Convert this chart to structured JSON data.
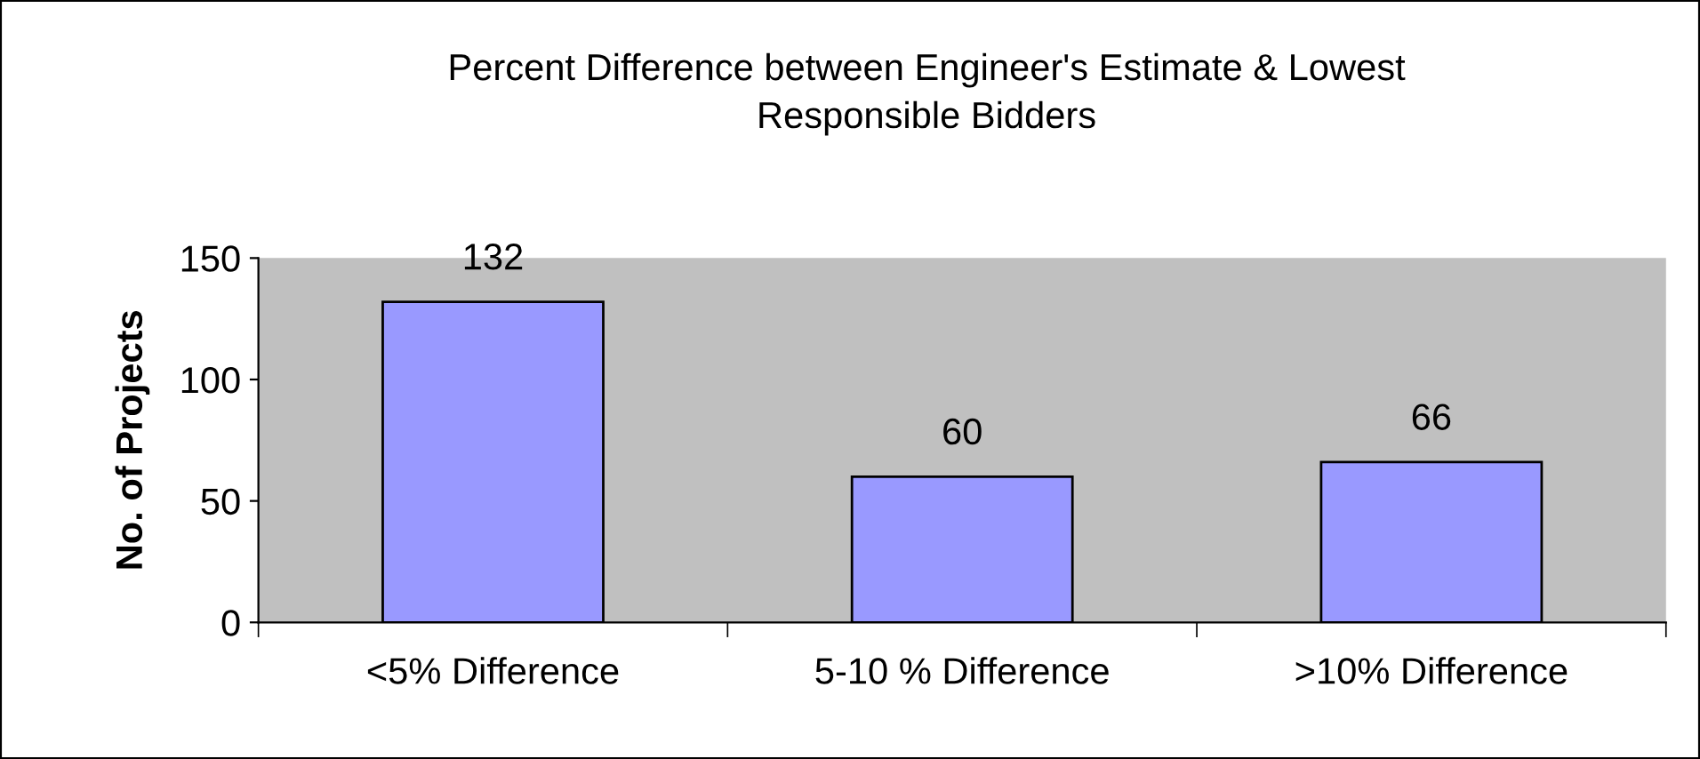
{
  "chart_data": {
    "type": "bar",
    "title": "Percent Difference between Engineer's Estimate & Lowest\nResponsible Bidders",
    "ylabel": "No. of Projects",
    "categories": [
      "<5% Difference",
      "5-10 % Difference",
      ">10% Difference"
    ],
    "values": [
      132,
      60,
      66
    ],
    "color": "#9999ff",
    "ylim": [
      0,
      150
    ],
    "yticks": [
      0,
      50,
      100,
      150
    ],
    "grid": false,
    "legend": false,
    "data_labels": true
  }
}
